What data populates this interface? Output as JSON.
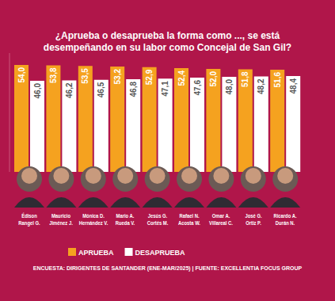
{
  "chart_data": {
    "type": "bar",
    "title": "¿Aprueba o desaprueba la forma como ..., se está desempeñando en su labor como Concejal de San Gil?",
    "categories": [
      "Édison\nRangel G.",
      "Mauricio\nJiménez J.",
      "Mónica D.\nHernández V.",
      "Mario A.\nRueda V.",
      "Jesús G.\nCortés M.",
      "Rafael N.\nAcosta W.",
      "Omar A.\nVillareal C.",
      "José G.\nOrtiz P.",
      "Ricardo A.\nDurán N."
    ],
    "series": [
      {
        "name": "APRUEBA",
        "color": "#f5a21f",
        "values": [
          54.0,
          53.8,
          53.5,
          53.2,
          52.9,
          52.4,
          52.0,
          51.8,
          51.6
        ],
        "value_labels": [
          "54,0",
          "53,8",
          "53,5",
          "53,2",
          "52,9",
          "52,4",
          "52,0",
          "51,8",
          "51,6"
        ]
      },
      {
        "name": "DESAPRUEBA",
        "color": "#ffffff",
        "values": [
          46.0,
          46.2,
          46.5,
          46.8,
          47.1,
          47.6,
          48.0,
          48.2,
          48.4
        ],
        "value_labels": [
          "46,0",
          "46,2",
          "46,5",
          "46,8",
          "47,1",
          "47,6",
          "48,0",
          "48,2",
          "48,4"
        ]
      }
    ],
    "ylim": [
      0,
      60
    ],
    "yticks": [],
    "grid": false,
    "data_labels": true,
    "tick_labels": "x",
    "legend": "bottom",
    "annotations": [
      "ENCUESTA: DIRIGENTES DE SANTANDER (ENE-MAR/2025) | FUENTE: EXCELLENTIA FOCUS GROUP"
    ]
  }
}
